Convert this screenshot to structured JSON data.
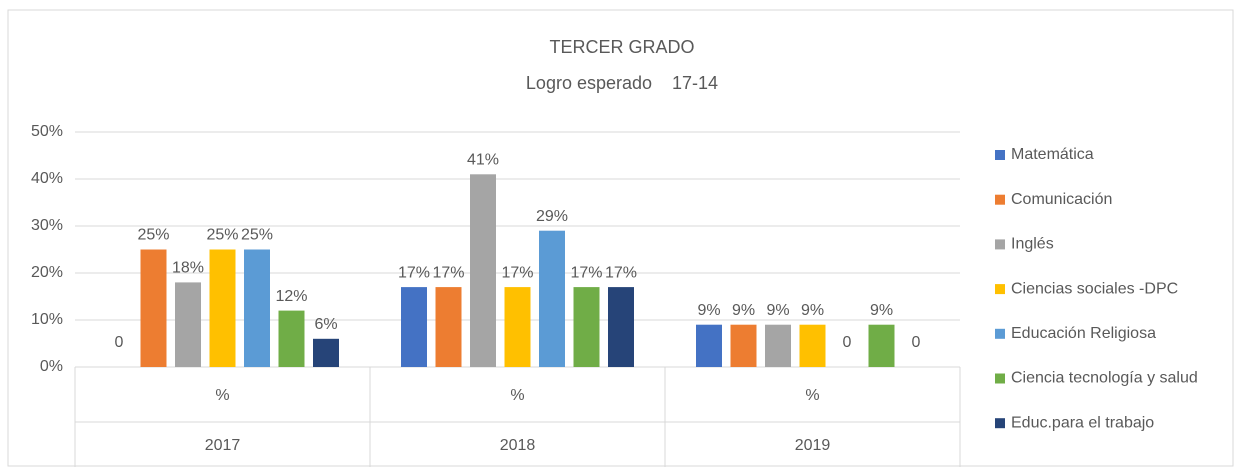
{
  "chart_data": {
    "type": "bar",
    "title": "TERCER GRADO",
    "subtitle": "Logro esperado    17-14",
    "categories": [
      "2017",
      "2018",
      "2019"
    ],
    "category_sublabels": [
      "%",
      "%",
      "%"
    ],
    "ylim": [
      0,
      50
    ],
    "yticks": [
      {
        "value": 0,
        "label": "0%"
      },
      {
        "value": 10,
        "label": "10%"
      },
      {
        "value": 20,
        "label": "20%"
      },
      {
        "value": 30,
        "label": "30%"
      },
      {
        "value": 40,
        "label": "40%"
      },
      {
        "value": 50,
        "label": "50%"
      }
    ],
    "grid": true,
    "legend": "right",
    "series": [
      {
        "name": "Matemática",
        "color": "#4472c4",
        "values": [
          0,
          17,
          9
        ],
        "value_labels": [
          "0",
          "17%",
          "9%"
        ]
      },
      {
        "name": "Comunicación",
        "color": "#ed7d31",
        "values": [
          25,
          17,
          9
        ],
        "value_labels": [
          "25%",
          "17%",
          "9%"
        ]
      },
      {
        "name": "Inglés",
        "color": "#a5a5a5",
        "values": [
          18,
          41,
          9
        ],
        "value_labels": [
          "18%",
          "41%",
          "9%"
        ]
      },
      {
        "name": "Ciencias sociales -DPC",
        "color": "#ffc000",
        "values": [
          25,
          17,
          9
        ],
        "value_labels": [
          "25%",
          "17%",
          "9%"
        ]
      },
      {
        "name": "Educación Religiosa",
        "color": "#5b9bd5",
        "values": [
          25,
          29,
          0
        ],
        "value_labels": [
          "25%",
          "29%",
          "0"
        ]
      },
      {
        "name": "Ciencia tecnología y salud",
        "color": "#70ad47",
        "values": [
          12,
          17,
          9
        ],
        "value_labels": [
          "12%",
          "17%",
          "9%"
        ]
      },
      {
        "name": "Educ.para el trabajo",
        "color": "#264478",
        "values": [
          6,
          17,
          0
        ],
        "value_labels": [
          "6%",
          "17%",
          "0"
        ]
      }
    ]
  }
}
